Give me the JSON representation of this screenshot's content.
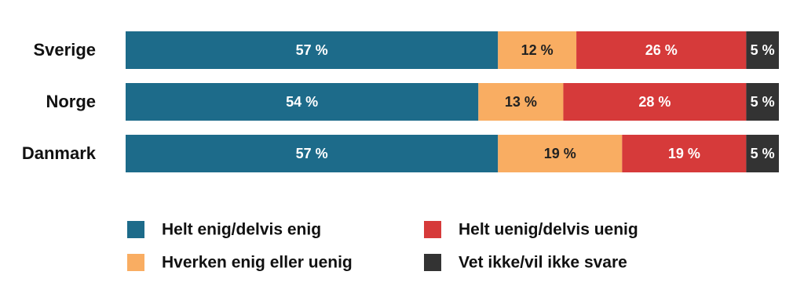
{
  "chart_data": {
    "type": "stacked-bar",
    "orientation": "horizontal",
    "legend": "bottom",
    "categories": [
      "Sverige",
      "Norge",
      "Danmark"
    ],
    "series": [
      {
        "name": "Helt enig/delvis enig",
        "color": "#1d6b8a",
        "label_color": "#ffffff",
        "values": [
          57,
          54,
          57
        ],
        "value_labels": [
          "57 %",
          "54 %",
          "57 %"
        ]
      },
      {
        "name": "Hverken enig eller uenig",
        "color": "#f9ad62",
        "label_color": "#222222",
        "values": [
          12,
          13,
          19
        ],
        "value_labels": [
          "12 %",
          "13 %",
          "19 %"
        ]
      },
      {
        "name": "Helt uenig/delvis uenig",
        "color": "#d63a3a",
        "label_color": "#ffffff",
        "values": [
          26,
          28,
          19
        ],
        "value_labels": [
          "26 %",
          "28 %",
          "19 %"
        ]
      },
      {
        "name": "Vet ikke/vil ikke svare",
        "color": "#333333",
        "label_color": "#ffffff",
        "values": [
          5,
          5,
          5
        ],
        "value_labels": [
          "5 %",
          "5 %",
          "5 %"
        ]
      }
    ]
  }
}
